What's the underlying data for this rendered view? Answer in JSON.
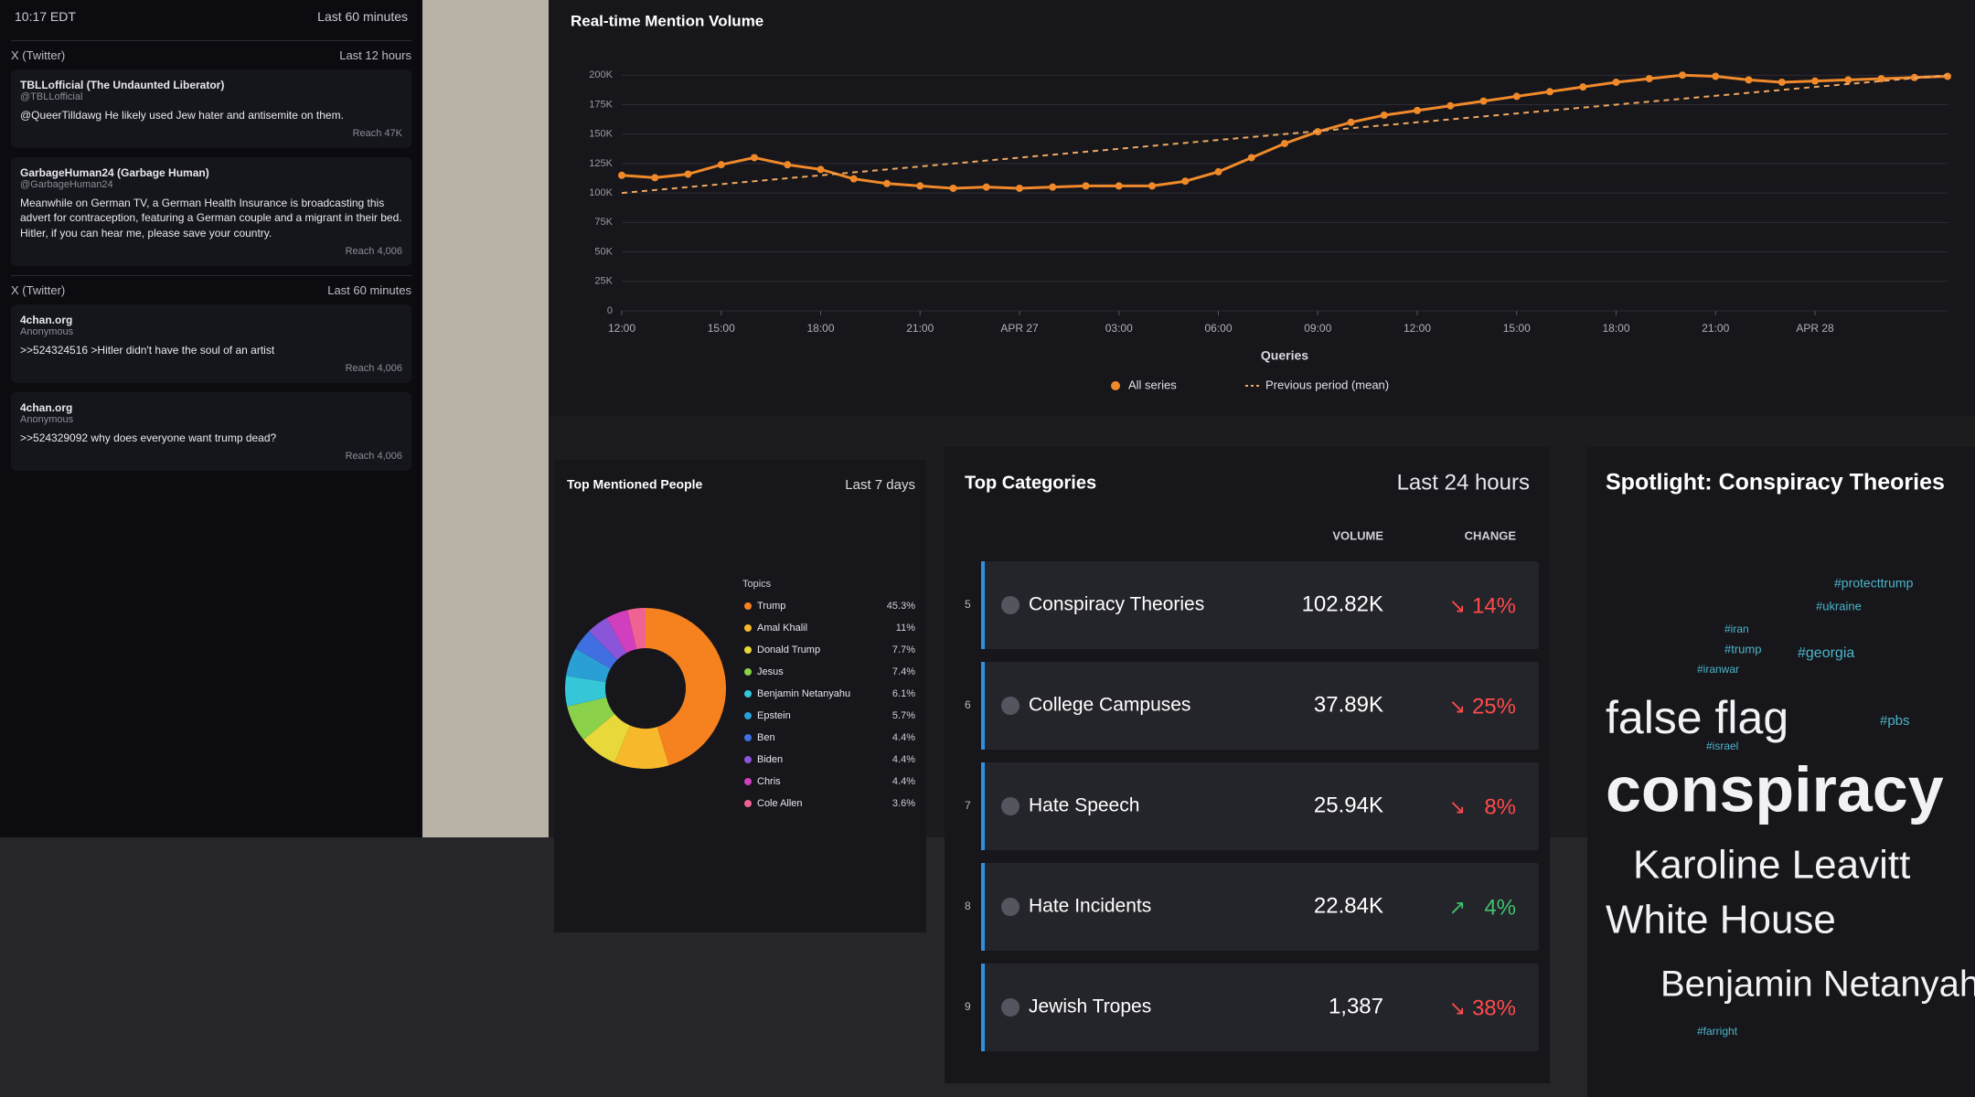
{
  "status_panel": {
    "time": "10:17 EDT",
    "window": "Last 60 minutes",
    "feeds": [
      {
        "source": "X (Twitter)",
        "window": "Last 12 hours",
        "posts": [
          {
            "author": "TBLLofficial (The Undaunted Liberator)",
            "handle": "@TBLLofficial",
            "text": "@QueerTilldawg He likely used Jew hater and antisemite on them.",
            "reach": "Reach 47K"
          },
          {
            "author": "GarbageHuman24 (Garbage Human)",
            "handle": "@GarbageHuman24",
            "text": "Meanwhile on German TV, a German Health Insurance is broadcasting this advert for contraception, featuring a German couple and a migrant in their bed. Hitler, if you can hear me, please save your country.",
            "reach": "Reach 4,006"
          }
        ]
      },
      {
        "source": "X (Twitter)",
        "window": "Last 60 minutes",
        "posts": [
          {
            "author": "4chan.org",
            "handle": "Anonymous",
            "text": ">>524324516 >Hitler didn't have the soul of an artist",
            "reach": "Reach 4,006"
          },
          {
            "author": "4chan.org",
            "handle": "Anonymous",
            "text": ">>524329092 why does everyone want trump dead?",
            "reach": "Reach 4,006"
          }
        ]
      }
    ]
  },
  "chart_data": [
    {
      "type": "line",
      "title": "Real-time Mention Volume",
      "x_label": "Queries",
      "x": [
        0,
        1,
        2,
        3,
        4,
        5,
        6,
        7,
        8,
        9,
        10,
        11,
        12,
        13,
        14,
        15,
        16,
        17,
        18,
        19,
        20,
        21,
        22,
        23,
        24,
        25,
        26,
        27,
        28,
        29,
        30,
        31,
        32,
        33,
        34,
        35,
        36,
        37,
        38,
        39,
        40
      ],
      "series": [
        {
          "name": "All series",
          "color": "#f0892a",
          "dashed": false,
          "markers": true,
          "values": [
            115000,
            113000,
            116000,
            124000,
            130000,
            124000,
            120000,
            112000,
            108000,
            106000,
            104000,
            105000,
            104000,
            105000,
            106000,
            106000,
            106000,
            110000,
            118000,
            130000,
            142000,
            152000,
            160000,
            166000,
            170000,
            174000,
            178000,
            182000,
            186000,
            190000,
            194000,
            197000,
            200000,
            199000,
            196000,
            194000,
            195000,
            196000,
            197000,
            198000,
            199000
          ]
        },
        {
          "name": "Previous period (mean)",
          "color": "#f0a860",
          "dashed": true,
          "markers": false,
          "values": [
            100000,
            102500,
            105000,
            107500,
            110000,
            112500,
            115000,
            117500,
            120000,
            122500,
            125000,
            127500,
            130000,
            132500,
            135000,
            137500,
            140000,
            142500,
            145000,
            147500,
            150000,
            152500,
            155000,
            157500,
            160000,
            162500,
            165000,
            167500,
            170000,
            172500,
            175000,
            177500,
            180000,
            182500,
            185000,
            187500,
            190000,
            192500,
            195000,
            197500,
            200000
          ]
        }
      ],
      "xlim": [
        0,
        40
      ],
      "xticks": [
        {
          "value": 0,
          "label": "12:00"
        },
        {
          "value": 3,
          "label": "15:00"
        },
        {
          "value": 6,
          "label": "18:00"
        },
        {
          "value": 9,
          "label": "21:00"
        },
        {
          "value": 12,
          "label": "APR 27"
        },
        {
          "value": 15,
          "label": "03:00"
        },
        {
          "value": 18,
          "label": "06:00"
        },
        {
          "value": 21,
          "label": "09:00"
        },
        {
          "value": 24,
          "label": "12:00"
        },
        {
          "value": 27,
          "label": "15:00"
        },
        {
          "value": 30,
          "label": "18:00"
        },
        {
          "value": 33,
          "label": "21:00"
        },
        {
          "value": 36,
          "label": "APR 28"
        }
      ],
      "ylim": [
        0,
        225000
      ],
      "yticks": [
        0,
        {
          "value": 25000,
          "label": "25K"
        },
        {
          "value": 50000,
          "label": "50K"
        },
        {
          "value": 75000,
          "label": "75K"
        },
        {
          "value": 100000,
          "label": "100K"
        },
        {
          "value": 125000,
          "label": "125K"
        },
        {
          "value": 150000,
          "label": "150K"
        },
        {
          "value": 175000,
          "label": "175K"
        },
        {
          "value": 200000,
          "label": "200K"
        }
      ],
      "grid": true
    },
    {
      "type": "pie",
      "title": "Top Mentioned People",
      "subtitle": "Last 7 days",
      "legend_title": "Topics",
      "donut": true,
      "categories": [
        "Trump",
        "Amal Khalil",
        "Donald Trump",
        "Jesus",
        "Benjamin Netanyahu",
        "Epstein",
        "Ben",
        "Biden",
        "Chris",
        "Cole Allen"
      ],
      "values": [
        45.3,
        11,
        7.7,
        7.4,
        6.1,
        5.7,
        4.4,
        4.4,
        4.4,
        3.6
      ],
      "value_labels": [
        "45.3%",
        "11%",
        "7.7%",
        "7.4%",
        "6.1%",
        "5.7%",
        "4.4%",
        "4.4%",
        "4.4%",
        "3.6%"
      ],
      "colors": [
        "#f5811f",
        "#f7b82b",
        "#e8d83a",
        "#8bd14a",
        "#35c7d8",
        "#2a9fd6",
        "#3f6fe0",
        "#8a55d8",
        "#d13fbf",
        "#f06292"
      ]
    }
  ],
  "categories_table": {
    "title": "Top Categories",
    "window": "Last 24 hours",
    "columns": [
      "VOLUME",
      "CHANGE"
    ],
    "rows": [
      {
        "rank": "5",
        "name": "Conspiracy Theories",
        "volume": "102.82K",
        "change": "14%",
        "direction": "down"
      },
      {
        "rank": "6",
        "name": "College Campuses",
        "volume": "37.89K",
        "change": "25%",
        "direction": "down"
      },
      {
        "rank": "7",
        "name": "Hate Speech",
        "volume": "25.94K",
        "change": "8%",
        "direction": "down"
      },
      {
        "rank": "8",
        "name": "Hate Incidents",
        "volume": "22.84K",
        "change": "4%",
        "direction": "up"
      },
      {
        "rank": "9",
        "name": "Jewish Tropes",
        "volume": "1,387",
        "change": "38%",
        "direction": "down"
      }
    ]
  },
  "spotlight": {
    "title": "Spotlight: Conspiracy Theories",
    "words": [
      "#protecttrump",
      "#ukraine",
      "#iran",
      "#trump",
      "#georgia",
      "#iranwar",
      "false flag",
      "#pbs",
      "#israel",
      "conspiracy",
      "Karoline Leavitt",
      "White House",
      "Benjamin Netanyahu",
      "#farright"
    ]
  }
}
